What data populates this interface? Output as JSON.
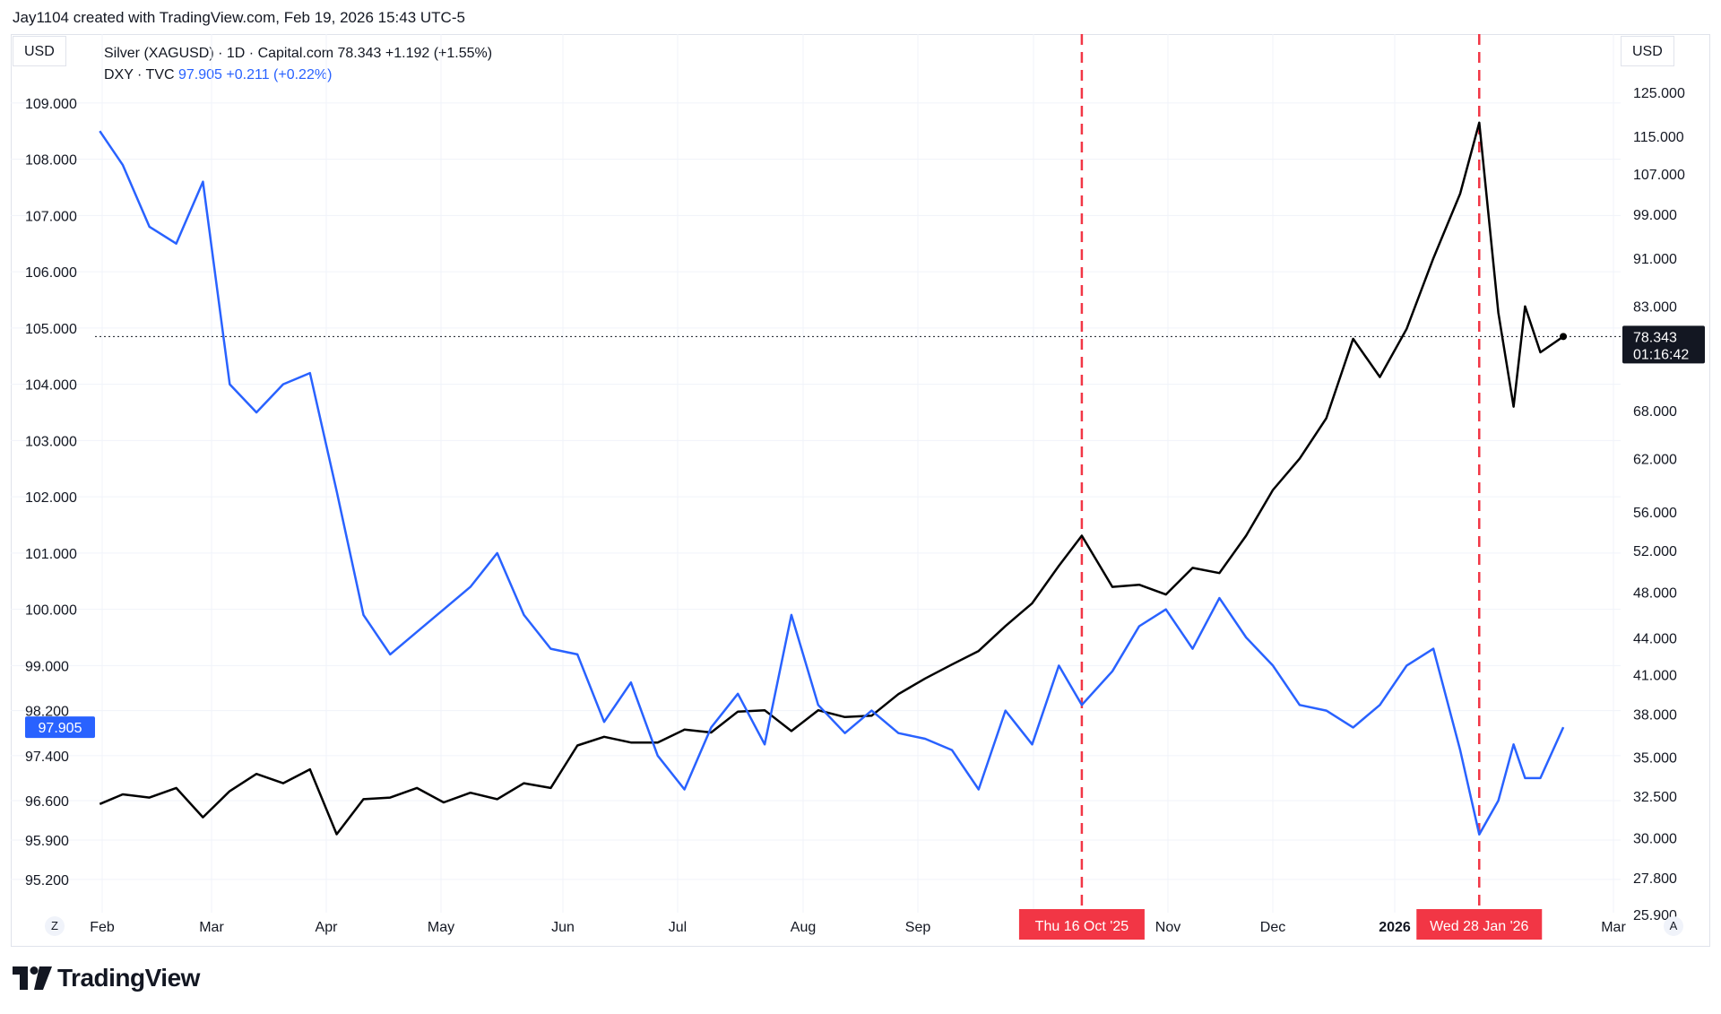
{
  "header": {
    "watermark": "Jay1104 created with TradingView.com, Feb 19, 2026 15:43 UTC-5"
  },
  "left_axis": {
    "currency": "USD"
  },
  "right_axis": {
    "currency": "USD"
  },
  "legend": {
    "silver_label": "Silver (XAGUSD) · 1D · Capital.com",
    "silver_price": "78.343",
    "silver_change": "+1.192 (+1.55%)",
    "dxy_label": "DXY · TVC",
    "dxy_price": "97.905",
    "dxy_change": "+0.211 (+0.22%)"
  },
  "buttons": {
    "z_label": "Z",
    "a_label": "A"
  },
  "footer": {
    "logo_text": "TradingView"
  },
  "colors": {
    "silver": "#000000",
    "dxy": "#2962ff",
    "marker": "#f23645",
    "grid": "#f0f3fa"
  },
  "chart_data": {
    "type": "line",
    "title": "",
    "x_ticks": [
      "Feb",
      "Mar",
      "Apr",
      "May",
      "Jun",
      "Jul",
      "Aug",
      "Sep",
      "Oct",
      "Nov",
      "Dec",
      "2026",
      "Mar"
    ],
    "left_axis_ticks": [
      "109.000",
      "108.000",
      "107.000",
      "106.000",
      "105.000",
      "104.000",
      "103.000",
      "102.000",
      "101.000",
      "100.000",
      "99.000",
      "98.200",
      "97.400",
      "96.600",
      "95.900",
      "95.200"
    ],
    "right_axis_ticks": [
      "125.000",
      "115.000",
      "107.000",
      "99.000",
      "91.000",
      "83.000",
      "68.000",
      "62.000",
      "56.000",
      "52.000",
      "48.000",
      "44.000",
      "41.000",
      "38.000",
      "35.000",
      "32.500",
      "30.000",
      "27.800",
      "25.900"
    ],
    "right_axis_scale": "log",
    "left_ylim": [
      94.8,
      109.3
    ],
    "right_ylim": [
      25.9,
      127
    ],
    "grid": true,
    "last_price_label": {
      "price": "78.343",
      "countdown": "01:16:42"
    },
    "dxy_last_label": "97.905",
    "vertical_markers": [
      {
        "date": "2025-10-16",
        "label": "Thu 16 Oct '25"
      },
      {
        "date": "2026-01-28",
        "label": "Wed 28 Jan '26"
      }
    ],
    "series": [
      {
        "name": "Silver (XAGUSD)",
        "axis": "right",
        "points": [
          [
            "2025-02-01",
            32.0
          ],
          [
            "2025-02-07",
            32.6
          ],
          [
            "2025-02-14",
            32.4
          ],
          [
            "2025-02-21",
            33.0
          ],
          [
            "2025-02-28",
            31.2
          ],
          [
            "2025-03-07",
            32.8
          ],
          [
            "2025-03-14",
            33.9
          ],
          [
            "2025-03-21",
            33.3
          ],
          [
            "2025-03-28",
            34.2
          ],
          [
            "2025-04-04",
            30.2
          ],
          [
            "2025-04-11",
            32.3
          ],
          [
            "2025-04-18",
            32.4
          ],
          [
            "2025-04-25",
            33.0
          ],
          [
            "2025-05-02",
            32.1
          ],
          [
            "2025-05-09",
            32.7
          ],
          [
            "2025-05-16",
            32.3
          ],
          [
            "2025-05-23",
            33.3
          ],
          [
            "2025-05-30",
            33.0
          ],
          [
            "2025-06-06",
            35.8
          ],
          [
            "2025-06-13",
            36.4
          ],
          [
            "2025-06-20",
            36.0
          ],
          [
            "2025-06-27",
            36.0
          ],
          [
            "2025-07-04",
            36.9
          ],
          [
            "2025-07-11",
            36.7
          ],
          [
            "2025-07-18",
            38.2
          ],
          [
            "2025-07-25",
            38.3
          ],
          [
            "2025-08-01",
            36.8
          ],
          [
            "2025-08-08",
            38.3
          ],
          [
            "2025-08-15",
            37.8
          ],
          [
            "2025-08-22",
            37.9
          ],
          [
            "2025-08-29",
            39.5
          ],
          [
            "2025-09-05",
            40.7
          ],
          [
            "2025-09-12",
            41.8
          ],
          [
            "2025-09-19",
            42.9
          ],
          [
            "2025-09-26",
            45.0
          ],
          [
            "2025-10-03",
            47.0
          ],
          [
            "2025-10-10",
            50.5
          ],
          [
            "2025-10-16",
            53.5
          ],
          [
            "2025-10-24",
            48.5
          ],
          [
            "2025-10-31",
            48.7
          ],
          [
            "2025-11-07",
            47.8
          ],
          [
            "2025-11-14",
            50.3
          ],
          [
            "2025-11-21",
            49.8
          ],
          [
            "2025-11-28",
            53.5
          ],
          [
            "2025-12-05",
            58.4
          ],
          [
            "2025-12-12",
            62.0
          ],
          [
            "2025-12-19",
            67.0
          ],
          [
            "2025-12-26",
            78.0
          ],
          [
            "2026-01-02",
            72.5
          ],
          [
            "2026-01-09",
            79.5
          ],
          [
            "2026-01-16",
            91.0
          ],
          [
            "2026-01-23",
            103.0
          ],
          [
            "2026-01-28",
            118.0
          ],
          [
            "2026-02-02",
            82.0
          ],
          [
            "2026-02-06",
            68.5
          ],
          [
            "2026-02-09",
            83.0
          ],
          [
            "2026-02-13",
            76.0
          ],
          [
            "2026-02-19",
            78.343
          ]
        ]
      },
      {
        "name": "DXY",
        "axis": "left",
        "points": [
          [
            "2025-02-01",
            108.5
          ],
          [
            "2025-02-07",
            107.9
          ],
          [
            "2025-02-14",
            106.8
          ],
          [
            "2025-02-21",
            106.5
          ],
          [
            "2025-02-28",
            107.6
          ],
          [
            "2025-03-07",
            104.0
          ],
          [
            "2025-03-14",
            103.5
          ],
          [
            "2025-03-21",
            104.0
          ],
          [
            "2025-03-28",
            104.2
          ],
          [
            "2025-04-04",
            102.1
          ],
          [
            "2025-04-11",
            99.9
          ],
          [
            "2025-04-18",
            99.2
          ],
          [
            "2025-04-25",
            99.6
          ],
          [
            "2025-05-02",
            100.0
          ],
          [
            "2025-05-09",
            100.4
          ],
          [
            "2025-05-16",
            101.0
          ],
          [
            "2025-05-23",
            99.9
          ],
          [
            "2025-05-30",
            99.3
          ],
          [
            "2025-06-06",
            99.2
          ],
          [
            "2025-06-13",
            98.0
          ],
          [
            "2025-06-20",
            98.7
          ],
          [
            "2025-06-27",
            97.4
          ],
          [
            "2025-07-04",
            96.8
          ],
          [
            "2025-07-11",
            97.9
          ],
          [
            "2025-07-18",
            98.5
          ],
          [
            "2025-07-25",
            97.6
          ],
          [
            "2025-08-01",
            99.9
          ],
          [
            "2025-08-08",
            98.3
          ],
          [
            "2025-08-15",
            97.8
          ],
          [
            "2025-08-22",
            98.2
          ],
          [
            "2025-08-29",
            97.8
          ],
          [
            "2025-09-05",
            97.7
          ],
          [
            "2025-09-12",
            97.5
          ],
          [
            "2025-09-19",
            96.8
          ],
          [
            "2025-09-26",
            98.2
          ],
          [
            "2025-10-03",
            97.6
          ],
          [
            "2025-10-10",
            99.0
          ],
          [
            "2025-10-16",
            98.3
          ],
          [
            "2025-10-24",
            98.9
          ],
          [
            "2025-10-31",
            99.7
          ],
          [
            "2025-11-07",
            100.0
          ],
          [
            "2025-11-14",
            99.3
          ],
          [
            "2025-11-21",
            100.2
          ],
          [
            "2025-11-28",
            99.5
          ],
          [
            "2025-12-05",
            99.0
          ],
          [
            "2025-12-12",
            98.3
          ],
          [
            "2025-12-19",
            98.2
          ],
          [
            "2025-12-26",
            97.9
          ],
          [
            "2026-01-02",
            98.3
          ],
          [
            "2026-01-09",
            99.0
          ],
          [
            "2026-01-16",
            99.3
          ],
          [
            "2026-01-23",
            97.5
          ],
          [
            "2026-01-28",
            96.0
          ],
          [
            "2026-02-02",
            96.6
          ],
          [
            "2026-02-06",
            97.6
          ],
          [
            "2026-02-09",
            97.0
          ],
          [
            "2026-02-13",
            97.0
          ],
          [
            "2026-02-19",
            97.905
          ]
        ]
      }
    ]
  }
}
